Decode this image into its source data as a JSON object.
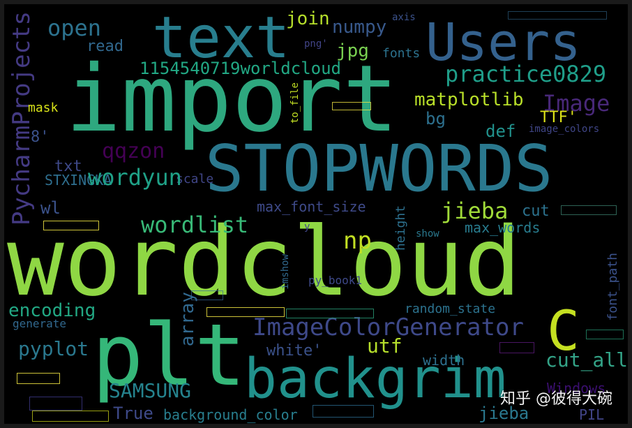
{
  "image": {
    "kind": "word cloud",
    "background": "#000000",
    "palette": "viridis"
  },
  "words": {
    "wordcloud": "wordcloud",
    "import": "import",
    "stopwords": "STOPWORDS",
    "plt": "plt",
    "backgrim": "backgrim",
    "text": "text",
    "users": "Users",
    "c": "C",
    "image_color_generator": "ImageColorGenerator",
    "pycharm_projects": "PycharmProjects",
    "practice0829": "practice0829",
    "worldcloud_id": "1154540719worldcloud",
    "open": "open",
    "join": "join",
    "numpy": "numpy",
    "read": "read",
    "jpg": "jpg",
    "png": "png'",
    "axis": "axis",
    "fonts": "fonts",
    "image": "Image",
    "matplotlib": "matplotlib",
    "bg": "bg",
    "def": "def",
    "ttf": "TTF'",
    "image_colors": "image_colors",
    "mask": "mask",
    "to_file": "to_file",
    "eight": "8'",
    "qqzon": "qqzon",
    "txt": "txt",
    "stxingka": "STXINGKA",
    "scale": "scale",
    "wordyun": "wordyun",
    "wl": "wl",
    "max_font_size": "max_font_size",
    "jieba": "jieba",
    "cut": "cut",
    "wordlist": "wordlist",
    "np": "np",
    "height": "height",
    "max_words": "max_words",
    "show": "show",
    "imshow": "imshow",
    "py_book1": "py_book1",
    "font_path": "font_path",
    "encoding": "encoding",
    "random_state": "random_state",
    "array": "array",
    "generate": "generate",
    "pyplot": "pyplot",
    "white": "white'",
    "utf": "utf",
    "width": "width",
    "cut_all": "cut_all",
    "samsung": "SAMSUNG",
    "true": "True",
    "background_color": "background_color",
    "jieba_short": "jieba",
    "pil": "PIL",
    "windows": "Windows",
    "y": "y"
  },
  "watermark": {
    "text": "知乎 @彼得大碗"
  }
}
